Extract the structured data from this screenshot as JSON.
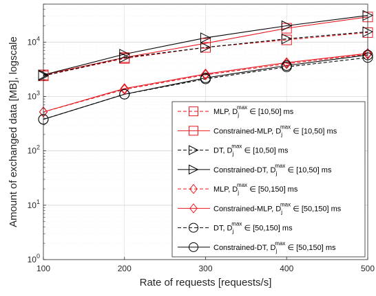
{
  "chart_data": {
    "type": "line",
    "xlabel": "Rate of requests [requests/s]",
    "ylabel": "Amount of exchanged data [MB], logscale",
    "yscale": "log",
    "xlim": [
      100,
      500
    ],
    "ylim": [
      1,
      50000
    ],
    "x": [
      100,
      200,
      300,
      400,
      500
    ],
    "x_ticks": [
      "100",
      "200",
      "300",
      "400",
      "500"
    ],
    "y_ticks": [
      {
        "base": "10",
        "exp": "0",
        "value": 1
      },
      {
        "base": "10",
        "exp": "1",
        "value": 10
      },
      {
        "base": "10",
        "exp": "2",
        "value": 100
      },
      {
        "base": "10",
        "exp": "3",
        "value": 1000
      },
      {
        "base": "10",
        "exp": "4",
        "value": 10000
      }
    ],
    "grid": true,
    "legend_position": "lower-right",
    "series": [
      {
        "name": "MLP, D_j^max ∈ [10,50] ms",
        "prefix": "MLP, D",
        "sup": "max",
        "sub": "j",
        "suffix": " ∈ [10,50] ms",
        "color": "#e8141c",
        "dash": true,
        "marker": "square",
        "values": [
          2400,
          5000,
          8000,
          11000,
          15000
        ]
      },
      {
        "name": "Constrained-MLP, D_j^max ∈ [10,50] ms",
        "prefix": "Constrained-MLP, D",
        "sup": "max",
        "sub": "j",
        "suffix": " ∈ [10,50] ms",
        "color": "#e8141c",
        "dash": false,
        "marker": "square",
        "values": [
          2500,
          5200,
          9500,
          18000,
          29000
        ]
      },
      {
        "name": "DT, D_j^max ∈ [10,50] ms",
        "prefix": "DT, D",
        "sup": "max",
        "sub": "j",
        "suffix": " ∈ [10,50] ms",
        "color": "#000000",
        "dash": true,
        "marker": "triangle-right",
        "values": [
          2400,
          5200,
          8000,
          11500,
          15500
        ]
      },
      {
        "name": "Constrained-DT, D_j^max ∈ [10,50] ms",
        "prefix": "Constrained-DT, D",
        "sup": "max",
        "sub": "j",
        "suffix": " ∈ [10,50] ms",
        "color": "#000000",
        "dash": false,
        "marker": "triangle-right",
        "values": [
          2500,
          6000,
          12000,
          20000,
          31000
        ]
      },
      {
        "name": "MLP, D_j^max ∈ [50,150] ms",
        "prefix": "MLP, D",
        "sup": "max",
        "sub": "j",
        "suffix": " ∈ [50,150] ms",
        "color": "#e8141c",
        "dash": true,
        "marker": "diamond",
        "values": [
          520,
          1350,
          2500,
          4000,
          6000
        ]
      },
      {
        "name": "Constrained-MLP, D_j^max ∈ [50,150] ms",
        "prefix": "Constrained-MLP, D",
        "sup": "max",
        "sub": "j",
        "suffix": " ∈ [50,150] ms",
        "color": "#e8141c",
        "dash": false,
        "marker": "diamond",
        "values": [
          520,
          1400,
          2600,
          4200,
          6200
        ]
      },
      {
        "name": "DT, D_j^max ∈ [50,150] ms",
        "prefix": "DT, D",
        "sup": "max",
        "sub": "j",
        "suffix": " ∈ [50,150] ms",
        "color": "#000000",
        "dash": true,
        "marker": "circle",
        "values": [
          380,
          1100,
          2100,
          3500,
          5200
        ]
      },
      {
        "name": "Constrained-DT, D_j^max ∈ [50,150] ms",
        "prefix": "Constrained-DT, D",
        "sup": "max",
        "sub": "j",
        "suffix": " ∈ [50,150] ms",
        "color": "#000000",
        "dash": false,
        "marker": "circle",
        "values": [
          380,
          1100,
          2200,
          3700,
          5800
        ]
      }
    ]
  }
}
